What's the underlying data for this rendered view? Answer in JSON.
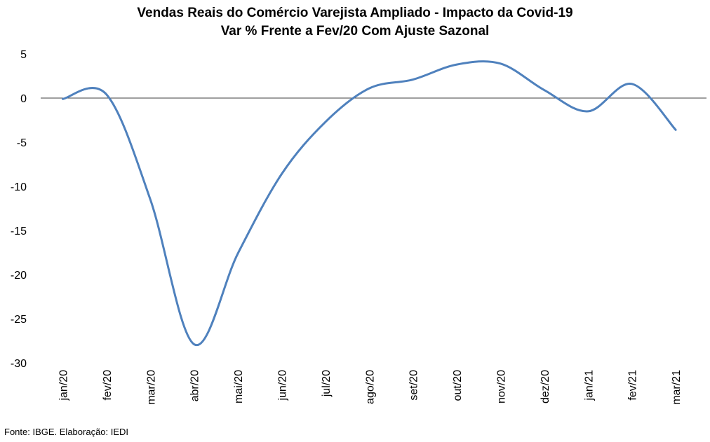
{
  "chart_data": {
    "type": "line",
    "title": "Vendas Reais do Comércio Varejista Ampliado - Impacto da Covid-19",
    "subtitle": "Var % Frente a Fev/20 Com Ajuste Sazonal",
    "categories": [
      "jan/20",
      "fev/20",
      "mar/20",
      "abr/20",
      "mai/20",
      "jun/20",
      "jul/20",
      "ago/20",
      "set/20",
      "out/20",
      "nov/20",
      "dez/20",
      "jan/21",
      "fev/21",
      "mar/21"
    ],
    "series": [
      {
        "values": [
          -0.1,
          0.4,
          -11.5,
          -27.9,
          -17.6,
          -8.6,
          -2.7,
          1.1,
          2.1,
          3.8,
          3.9,
          0.9,
          -1.5,
          1.6,
          -3.6
        ],
        "color": "#4f81bd"
      }
    ],
    "ylim": [
      -30,
      5
    ],
    "yticks": [
      5,
      0,
      -5,
      -10,
      -15,
      -20,
      -25,
      -30
    ],
    "grid": false,
    "zero_line": true
  },
  "footer": {
    "source": "Fonte: IBGE. Elaboração: IEDI"
  }
}
